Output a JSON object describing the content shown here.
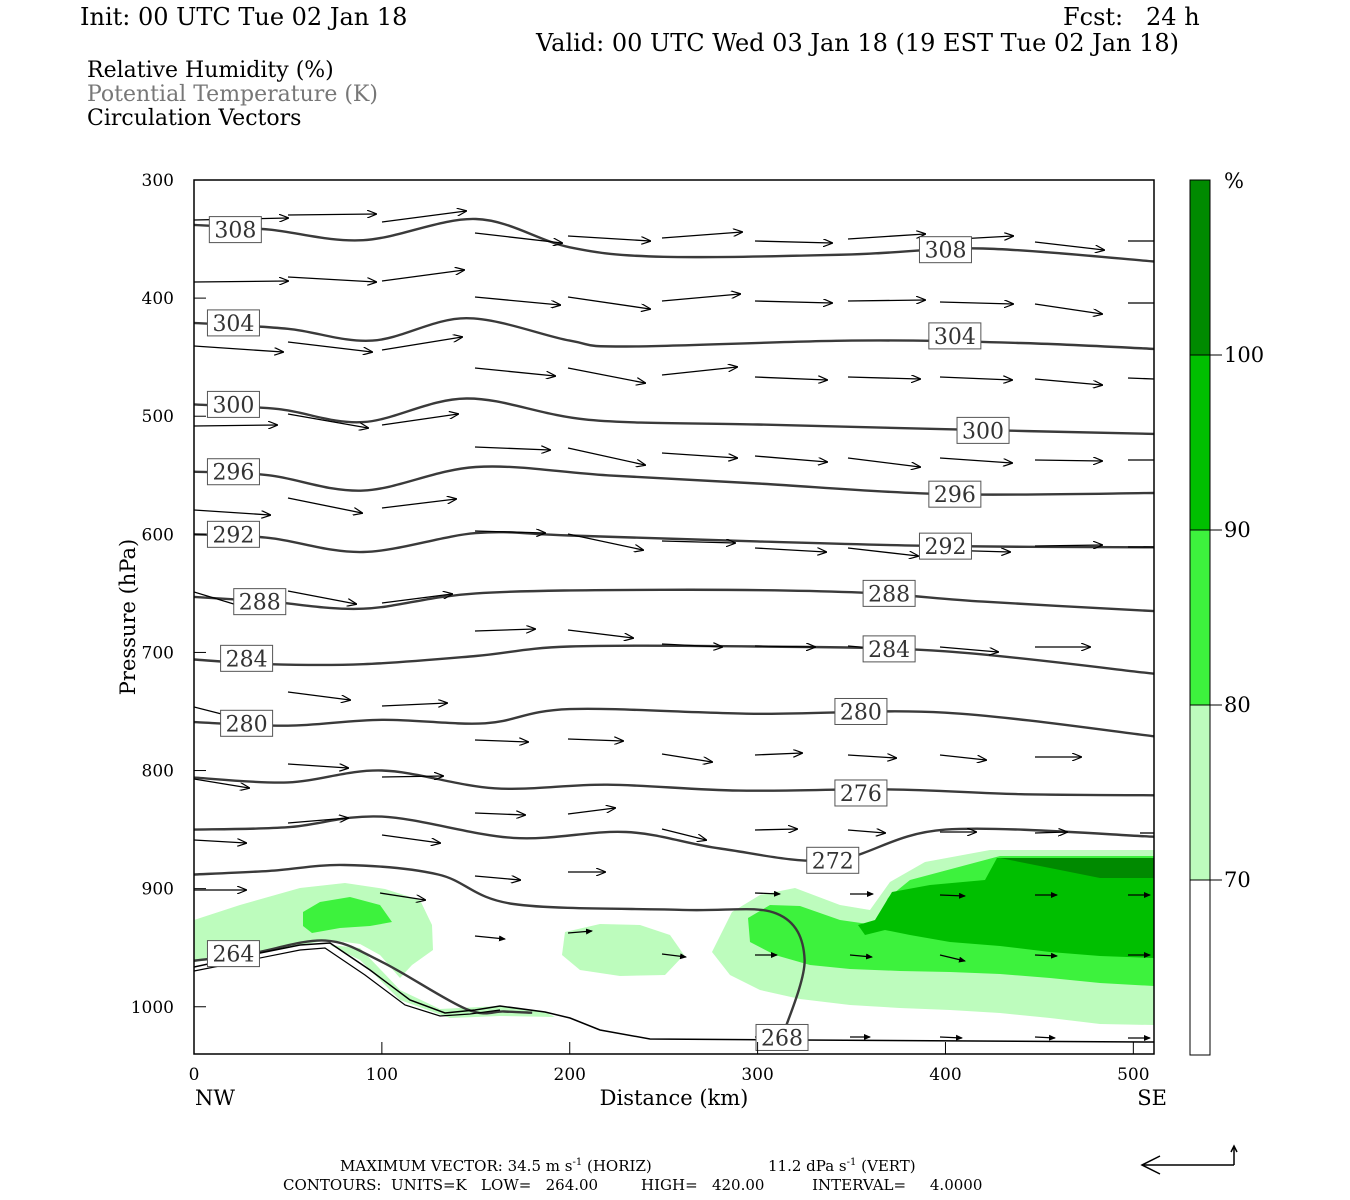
{
  "header": {
    "init": "Init: 00 UTC Tue 02 Jan 18",
    "fcst": "Fcst:   24 h",
    "valid": "Valid: 00 UTC Wed 03 Jan 18 (19 EST Tue 02 Jan 18)"
  },
  "legend": {
    "rh": "Relative Humidity (%)",
    "theta": "Potential Temperature (K)",
    "vectors": "Circulation Vectors"
  },
  "colors": {
    "rh70": "#bdfcbd",
    "rh80": "#3df23d",
    "rh90": "#00bf00",
    "rh100": "#008a00",
    "contour": "#3a3a3a",
    "ground": "#000000"
  },
  "chart_data": {
    "type": "cross-section",
    "xlabel": "Distance (km)",
    "ylabel": "Pressure (hPa)",
    "xlim": [
      0,
      511
    ],
    "ylim": [
      1040,
      300
    ],
    "xticks": [
      0,
      100,
      200,
      300,
      400,
      500
    ],
    "yticks": [
      300,
      400,
      500,
      600,
      700,
      800,
      900,
      1000
    ],
    "x_end_labels": {
      "left": "NW",
      "right": "SE"
    },
    "colorbar": {
      "unit": "%",
      "levels": [
        70,
        80,
        90,
        100
      ],
      "colors": [
        "#ffffff",
        "#bdfcbd",
        "#3df23d",
        "#00bf00",
        "#008a00"
      ]
    },
    "theta_contours": [
      {
        "value": 308,
        "label_pos": [
          [
            22,
            342
          ],
          [
            400,
            359
          ]
        ],
        "points": [
          [
            0,
            338
          ],
          [
            40,
            342
          ],
          [
            90,
            351
          ],
          [
            150,
            333
          ],
          [
            200,
            357
          ],
          [
            250,
            365
          ],
          [
            350,
            363
          ],
          [
            420,
            358
          ],
          [
            511,
            369
          ]
        ]
      },
      {
        "value": 304,
        "label_pos": [
          [
            21,
            421
          ],
          [
            405,
            432
          ]
        ],
        "points": [
          [
            0,
            421
          ],
          [
            50,
            426
          ],
          [
            95,
            436
          ],
          [
            145,
            417
          ],
          [
            200,
            436
          ],
          [
            230,
            441
          ],
          [
            350,
            436
          ],
          [
            440,
            438
          ],
          [
            511,
            443
          ]
        ]
      },
      {
        "value": 300,
        "label_pos": [
          [
            21,
            490
          ],
          [
            420,
            512
          ]
        ],
        "points": [
          [
            0,
            490
          ],
          [
            45,
            494
          ],
          [
            90,
            505
          ],
          [
            145,
            485
          ],
          [
            210,
            503
          ],
          [
            300,
            507
          ],
          [
            400,
            511
          ],
          [
            511,
            515
          ]
        ]
      },
      {
        "value": 296,
        "label_pos": [
          [
            21,
            547
          ],
          [
            405,
            566
          ]
        ],
        "points": [
          [
            0,
            547
          ],
          [
            40,
            550
          ],
          [
            90,
            563
          ],
          [
            150,
            543
          ],
          [
            220,
            550
          ],
          [
            300,
            557
          ],
          [
            400,
            566
          ],
          [
            511,
            565
          ]
        ]
      },
      {
        "value": 292,
        "label_pos": [
          [
            21,
            600
          ],
          [
            400,
            610
          ]
        ],
        "points": [
          [
            0,
            600
          ],
          [
            40,
            603
          ],
          [
            90,
            615
          ],
          [
            150,
            599
          ],
          [
            200,
            601
          ],
          [
            300,
            606
          ],
          [
            400,
            610
          ],
          [
            511,
            611
          ]
        ]
      },
      {
        "value": 288,
        "label_pos": [
          [
            35,
            657
          ],
          [
            370,
            650
          ]
        ],
        "points": [
          [
            0,
            653
          ],
          [
            40,
            657
          ],
          [
            90,
            663
          ],
          [
            150,
            650
          ],
          [
            250,
            647
          ],
          [
            350,
            649
          ],
          [
            420,
            657
          ],
          [
            511,
            665
          ]
        ]
      },
      {
        "value": 284,
        "label_pos": [
          [
            28,
            705
          ],
          [
            370,
            697
          ]
        ],
        "points": [
          [
            0,
            706
          ],
          [
            40,
            710
          ],
          [
            90,
            710
          ],
          [
            150,
            703
          ],
          [
            200,
            695
          ],
          [
            300,
            695
          ],
          [
            400,
            699
          ],
          [
            511,
            718
          ]
        ]
      },
      {
        "value": 280,
        "label_pos": [
          [
            28,
            760
          ],
          [
            355,
            750
          ]
        ],
        "points": [
          [
            0,
            759
          ],
          [
            50,
            762
          ],
          [
            100,
            757
          ],
          [
            155,
            760
          ],
          [
            200,
            748
          ],
          [
            300,
            752
          ],
          [
            400,
            751
          ],
          [
            511,
            771
          ]
        ]
      },
      {
        "value": 276,
        "label_pos": [
          [
            355,
            819
          ]
        ],
        "points": [
          [
            0,
            806
          ],
          [
            50,
            810
          ],
          [
            100,
            800
          ],
          [
            160,
            815
          ],
          [
            220,
            812
          ],
          [
            290,
            817
          ],
          [
            370,
            816
          ],
          [
            440,
            820
          ],
          [
            511,
            821
          ]
        ]
      },
      {
        "value": 272,
        "label_pos": [
          [
            340,
            876
          ]
        ],
        "points": [
          [
            0,
            850
          ],
          [
            50,
            848
          ],
          [
            100,
            839
          ],
          [
            170,
            857
          ],
          [
            230,
            852
          ],
          [
            280,
            866
          ],
          [
            340,
            876
          ],
          [
            400,
            850
          ],
          [
            511,
            856
          ]
        ]
      },
      {
        "value": 268,
        "label_pos": [
          [
            313,
            1026
          ]
        ],
        "points": [
          [
            0,
            888
          ],
          [
            40,
            885
          ],
          [
            80,
            880
          ],
          [
            130,
            888
          ],
          [
            170,
            913
          ],
          [
            260,
            918
          ],
          [
            310,
            921
          ],
          [
            325,
            960
          ],
          [
            313,
            1026
          ]
        ]
      },
      {
        "value": 264,
        "label_pos": [
          [
            21,
            955
          ]
        ],
        "points": [
          [
            0,
            961
          ],
          [
            30,
            955
          ],
          [
            70,
            944
          ],
          [
            100,
            962
          ],
          [
            145,
            1002
          ],
          [
            165,
            1004
          ],
          [
            180,
            1005
          ]
        ]
      }
    ],
    "max_vector": "MAXIMUM VECTOR:  34.5 m s",
    "max_vector_h": "(HORIZ)",
    "max_vector_v": "11.2 dPa s",
    "max_vector_v_unit": "(VERT)",
    "contour_info": "CONTOURS:  UNITS=K   LOW=   264.00         HIGH=   420.00          INTERVAL=     4.0000"
  }
}
